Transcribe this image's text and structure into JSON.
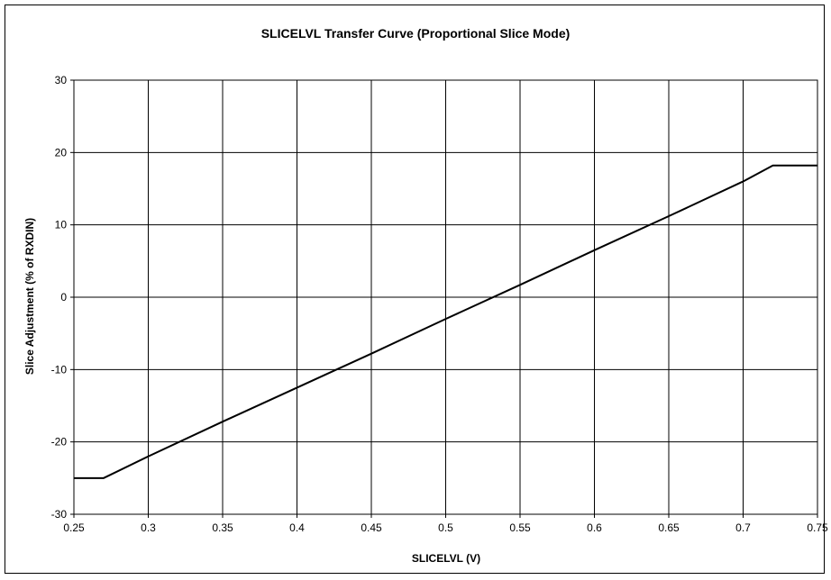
{
  "chart_data": {
    "type": "line",
    "title": "SLICELVL Transfer Curve (Proportional Slice Mode)",
    "xlabel": "SLICELVL (V)",
    "ylabel": "Slice Adjustment (% of RXDIN)",
    "xlim": [
      0.25,
      0.75
    ],
    "ylim": [
      -30,
      30
    ],
    "x_ticks": [
      0.25,
      0.3,
      0.35,
      0.4,
      0.45,
      0.5,
      0.55,
      0.6,
      0.65,
      0.7,
      0.75
    ],
    "x_tick_labels": [
      "0.25",
      "0.3",
      "0.35",
      "0.4",
      "0.45",
      "0.5",
      "0.55",
      "0.6",
      "0.65",
      "0.7",
      "0.75"
    ],
    "y_ticks": [
      -30,
      -20,
      -10,
      0,
      10,
      20,
      30
    ],
    "y_tick_labels": [
      "-30",
      "-20",
      "-10",
      "0",
      "10",
      "20",
      "30"
    ],
    "grid": true,
    "series": [
      {
        "x": [
          0.25,
          0.27,
          0.3,
          0.35,
          0.4,
          0.45,
          0.5,
          0.55,
          0.6,
          0.65,
          0.7,
          0.72,
          0.75
        ],
        "y": [
          -25,
          -25,
          -22,
          -17.2,
          -12.5,
          -7.8,
          -3,
          1.7,
          6.5,
          11.2,
          16,
          18.2,
          18.2
        ]
      }
    ],
    "colors": {
      "line": "#000000",
      "grid": "#000000",
      "frame": "#000000"
    }
  }
}
